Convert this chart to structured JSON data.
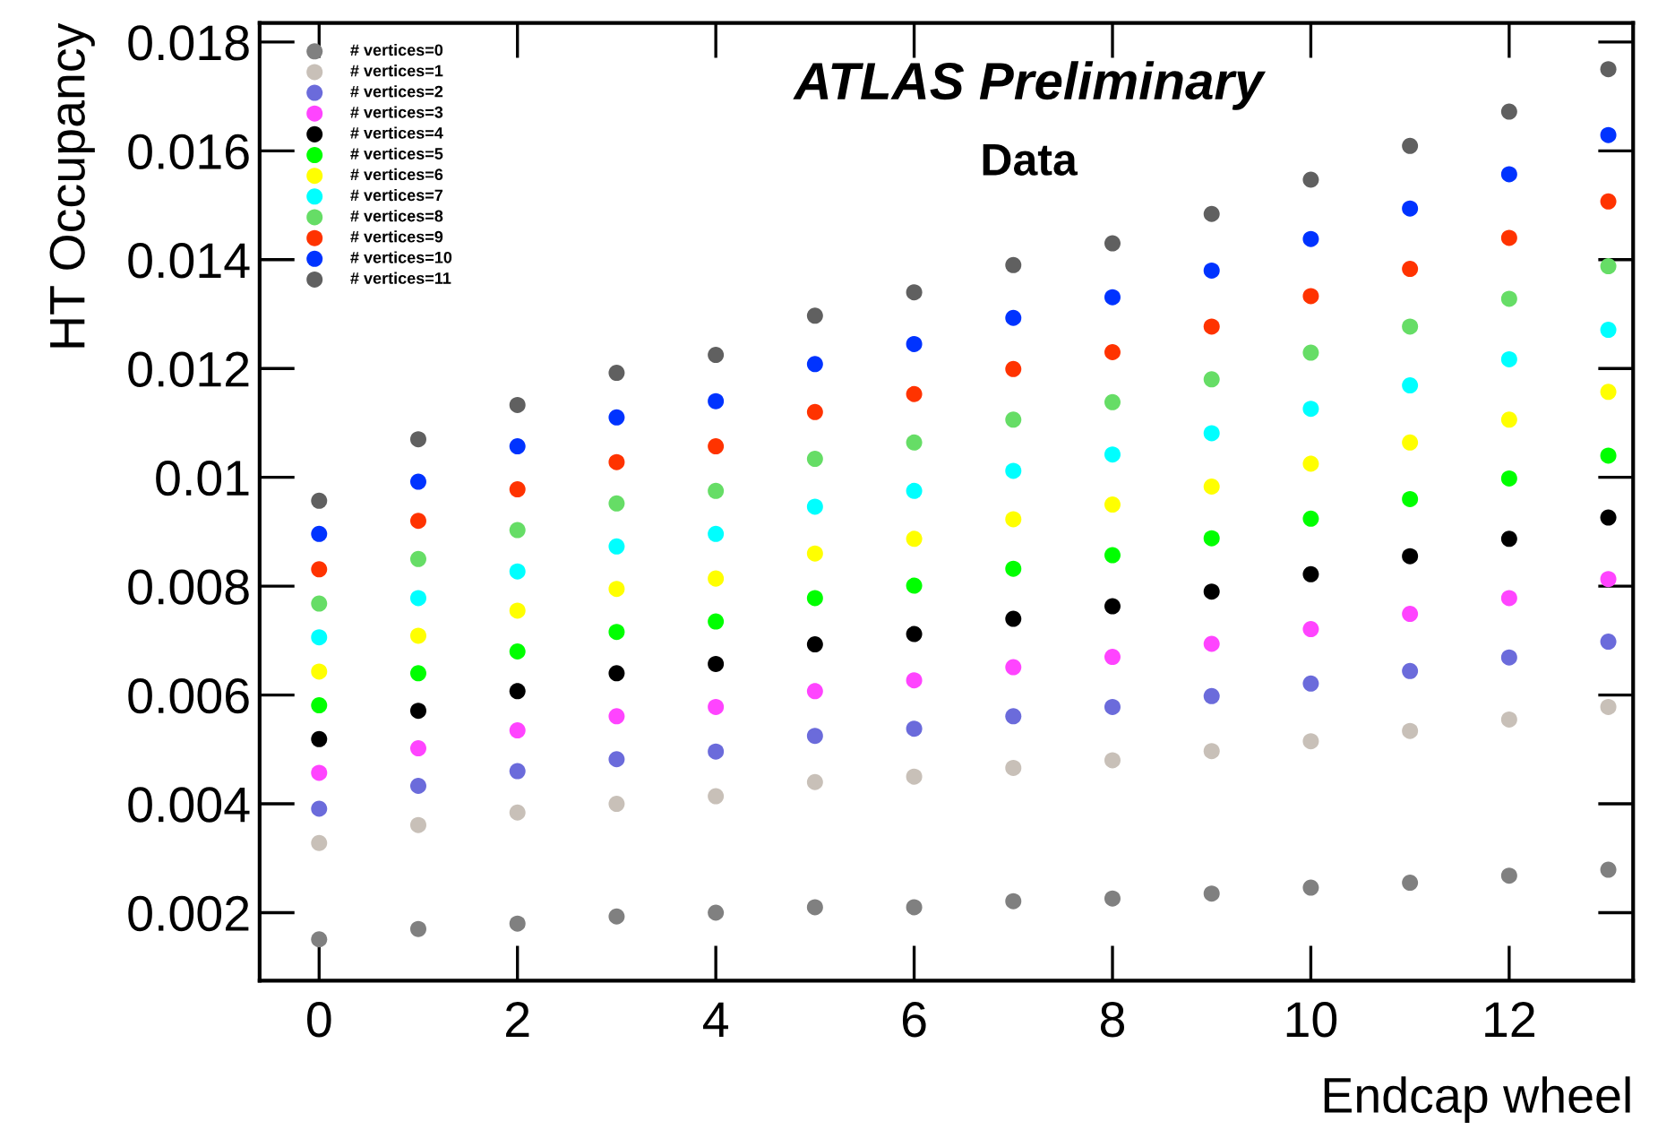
{
  "chart_data": {
    "type": "scatter",
    "title": "ATLAS Preliminary",
    "annotations": [
      "Data"
    ],
    "xlabel": "Endcap wheel",
    "ylabel": "HT Occupancy",
    "x": [
      0,
      1,
      2,
      3,
      4,
      5,
      6,
      7,
      8,
      9,
      10,
      11,
      12,
      13
    ],
    "xlim": [
      -0.6,
      13.25
    ],
    "xticks": [
      0,
      2,
      4,
      6,
      8,
      10,
      12
    ],
    "ylim": [
      0.00075,
      0.01835
    ],
    "yticks": [
      0.002,
      0.004,
      0.006,
      0.008,
      {
        "value": 0.01,
        "label": "0.01"
      },
      0.012,
      0.014,
      0.016,
      0.018
    ],
    "marker": "circle",
    "grid": false,
    "legend": "top left",
    "series": [
      {
        "name": "# vertices=0",
        "color": "#808080",
        "values": [
          0.00151,
          0.0017,
          0.0018,
          0.00193,
          0.002,
          0.0021,
          0.0021,
          0.00221,
          0.00226,
          0.00235,
          0.00246,
          0.00255,
          0.00268,
          0.00279
        ]
      },
      {
        "name": "# vertices=1",
        "color": "#c8c0b8",
        "values": [
          0.00328,
          0.00361,
          0.00384,
          0.004,
          0.00414,
          0.0044,
          0.0045,
          0.00466,
          0.0048,
          0.00497,
          0.00515,
          0.00534,
          0.00555,
          0.00578
        ]
      },
      {
        "name": "# vertices=2",
        "color": "#6b6bdb",
        "values": [
          0.00391,
          0.00433,
          0.0046,
          0.00482,
          0.00496,
          0.00525,
          0.00538,
          0.00561,
          0.00578,
          0.00598,
          0.00621,
          0.00644,
          0.00669,
          0.00698
        ]
      },
      {
        "name": "# vertices=3",
        "color": "#ff44ff",
        "values": [
          0.00457,
          0.00502,
          0.00535,
          0.00561,
          0.00578,
          0.00607,
          0.00627,
          0.00651,
          0.0067,
          0.00694,
          0.00721,
          0.00749,
          0.00778,
          0.00813
        ]
      },
      {
        "name": "# vertices=4",
        "color": "#000000",
        "values": [
          0.00519,
          0.00571,
          0.00607,
          0.0064,
          0.00657,
          0.00693,
          0.00712,
          0.0074,
          0.00763,
          0.0079,
          0.00822,
          0.00855,
          0.00887,
          0.00926
        ]
      },
      {
        "name": "# vertices=5",
        "color": "#00ff00",
        "values": [
          0.00581,
          0.0064,
          0.0068,
          0.00716,
          0.00735,
          0.00778,
          0.00801,
          0.00832,
          0.00857,
          0.00888,
          0.00924,
          0.0096,
          0.00998,
          0.0104
        ]
      },
      {
        "name": "# vertices=6",
        "color": "#ffff00",
        "values": [
          0.00643,
          0.00709,
          0.00755,
          0.00795,
          0.00814,
          0.0086,
          0.00887,
          0.00923,
          0.0095,
          0.00983,
          0.01025,
          0.01064,
          0.01106,
          0.01157
        ]
      },
      {
        "name": "# vertices=7",
        "color": "#00ffff",
        "values": [
          0.00706,
          0.00778,
          0.00827,
          0.00873,
          0.00896,
          0.00946,
          0.00975,
          0.01012,
          0.01042,
          0.01081,
          0.01126,
          0.01169,
          0.01217,
          0.01271
        ]
      },
      {
        "name": "# vertices=8",
        "color": "#66dd66",
        "values": [
          0.00768,
          0.0085,
          0.00903,
          0.00952,
          0.00975,
          0.01034,
          0.01064,
          0.01106,
          0.01138,
          0.0118,
          0.01229,
          0.01277,
          0.01328,
          0.01388
        ]
      },
      {
        "name": "# vertices=9",
        "color": "#ff3300",
        "values": [
          0.00831,
          0.0092,
          0.00978,
          0.01028,
          0.01057,
          0.0112,
          0.01153,
          0.01199,
          0.0123,
          0.01277,
          0.01333,
          0.01383,
          0.0144,
          0.01507
        ]
      },
      {
        "name": "# vertices=10",
        "color": "#0033ff",
        "values": [
          0.00896,
          0.00992,
          0.01057,
          0.0111,
          0.0114,
          0.01208,
          0.01245,
          0.01293,
          0.01331,
          0.0138,
          0.01438,
          0.01494,
          0.01557,
          0.01629
        ]
      },
      {
        "name": "# vertices=11",
        "color": "#606060",
        "values": [
          0.00957,
          0.0107,
          0.01133,
          0.01192,
          0.01225,
          0.01297,
          0.0134,
          0.0139,
          0.0143,
          0.01484,
          0.01547,
          0.01609,
          0.01672,
          0.0175
        ]
      }
    ]
  }
}
